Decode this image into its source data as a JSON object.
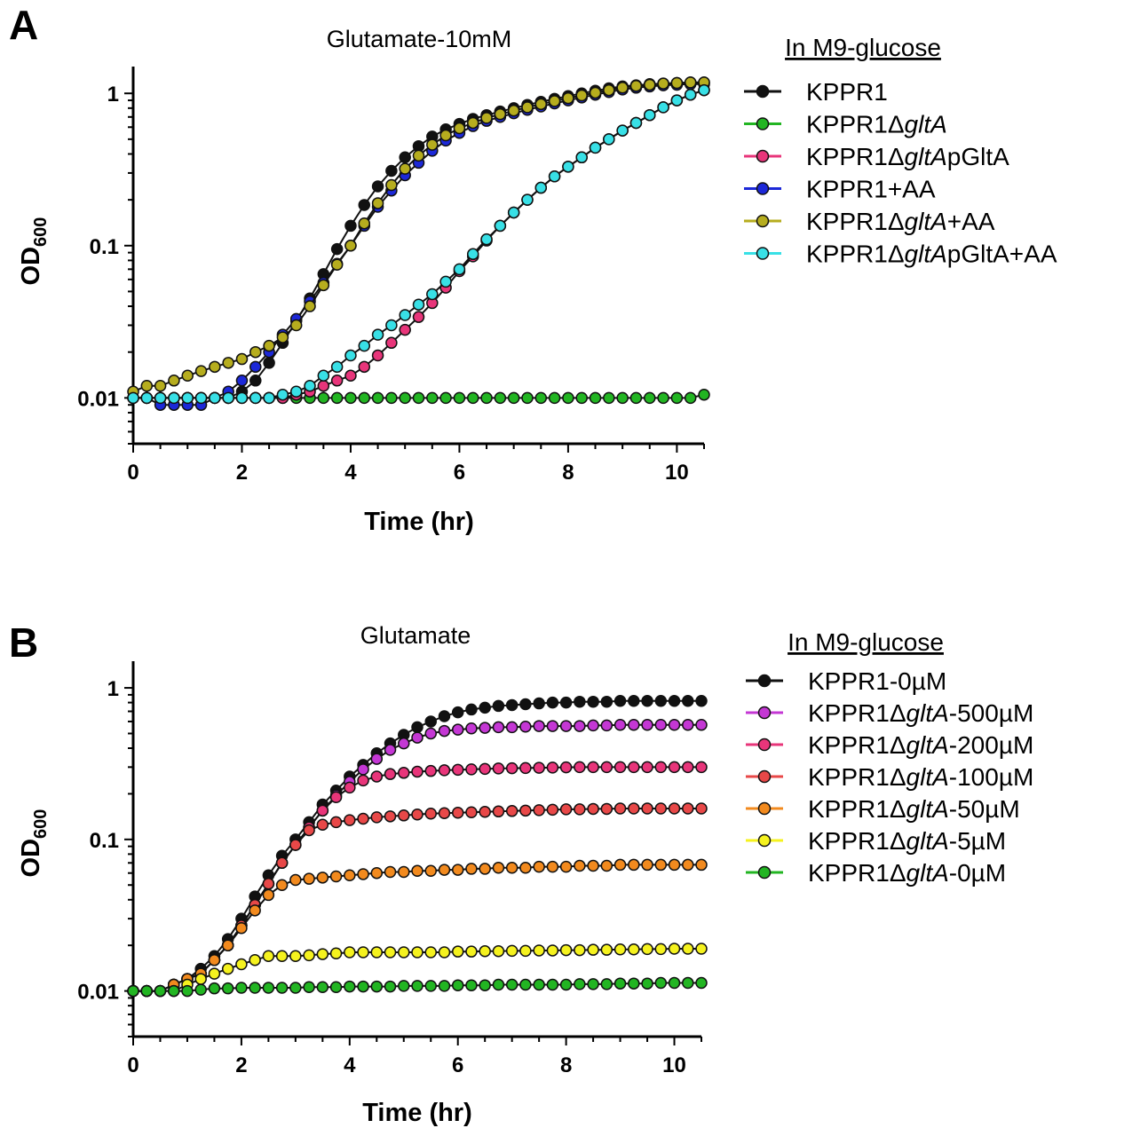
{
  "figure": {
    "panels": [
      {
        "letter": "A",
        "legend_title": "In M9-glucose",
        "legend_entries": [
          {
            "prefix": "KPPR1",
            "italic": "",
            "suffix": ""
          },
          {
            "prefix": "KPPR1Δ",
            "italic": "gltA",
            "suffix": ""
          },
          {
            "prefix": "KPPR1Δ",
            "italic": "gltA",
            "suffix": "pGltA"
          },
          {
            "prefix": "KPPR1+AA",
            "italic": "",
            "suffix": ""
          },
          {
            "prefix": "KPPR1Δ",
            "italic": "gltA",
            "suffix": "+AA"
          },
          {
            "prefix": "KPPR1Δ",
            "italic": "gltA",
            "suffix": "pGltA+AA"
          }
        ]
      },
      {
        "letter": "B",
        "legend_title": "In M9-glucose",
        "legend_entries": [
          {
            "prefix": "KPPR1-0µM",
            "italic": "",
            "suffix": ""
          },
          {
            "prefix": "KPPR1Δ",
            "italic": "gltA",
            "suffix": "-500µM"
          },
          {
            "prefix": "KPPR1Δ",
            "italic": "gltA",
            "suffix": "-200µM"
          },
          {
            "prefix": "KPPR1Δ",
            "italic": "gltA",
            "suffix": "-100µM"
          },
          {
            "prefix": "KPPR1Δ",
            "italic": "gltA",
            "suffix": "-50µM"
          },
          {
            "prefix": "KPPR1Δ",
            "italic": "gltA",
            "suffix": "-5µM"
          },
          {
            "prefix": "KPPR1Δ",
            "italic": "gltA",
            "suffix": "-0µM"
          }
        ]
      }
    ]
  },
  "chart_data": [
    {
      "type": "line",
      "title": "Glutamate-10mM",
      "xlabel": "Time (hr)",
      "ylabel_main": "OD",
      "ylabel_sub": "600",
      "xlim": [
        0,
        10.5
      ],
      "ylim": [
        0.005,
        1.5
      ],
      "yscale": "log",
      "xticks": [
        0,
        2,
        4,
        6,
        8,
        10
      ],
      "yticks": [
        0.01,
        0.1,
        1
      ],
      "ytick_labels": [
        "0.01",
        "0.1",
        "1"
      ],
      "grid": false,
      "legend_position": "right",
      "x": [
        0,
        0.25,
        0.5,
        0.75,
        1,
        1.25,
        1.5,
        1.75,
        2,
        2.25,
        2.5,
        2.75,
        3,
        3.25,
        3.5,
        3.75,
        4,
        4.25,
        4.5,
        4.75,
        5,
        5.25,
        5.5,
        5.75,
        6,
        6.25,
        6.5,
        6.75,
        7,
        7.25,
        7.5,
        7.75,
        8,
        8.25,
        8.5,
        8.75,
        9,
        9.25,
        9.5,
        9.75,
        10,
        10.25,
        10.5
      ],
      "series": [
        {
          "name": "KPPR1",
          "color": "#111111",
          "values": [
            0.01,
            0.01,
            0.01,
            0.01,
            0.01,
            0.01,
            0.01,
            0.01,
            0.011,
            0.013,
            0.017,
            0.023,
            0.032,
            0.045,
            0.065,
            0.095,
            0.135,
            0.185,
            0.245,
            0.31,
            0.38,
            0.45,
            0.52,
            0.58,
            0.63,
            0.68,
            0.72,
            0.76,
            0.8,
            0.84,
            0.88,
            0.92,
            0.96,
            1.0,
            1.04,
            1.08,
            1.11,
            1.13,
            1.15,
            1.16,
            1.17,
            1.18,
            1.18
          ]
        },
        {
          "name": "KPPR1ΔgltA",
          "color": "#22b522",
          "values": [
            0.01,
            0.01,
            0.01,
            0.01,
            0.01,
            0.01,
            0.01,
            0.01,
            0.01,
            0.01,
            0.01,
            0.01,
            0.01,
            0.01,
            0.01,
            0.01,
            0.01,
            0.01,
            0.01,
            0.01,
            0.01,
            0.01,
            0.01,
            0.01,
            0.01,
            0.01,
            0.01,
            0.01,
            0.01,
            0.01,
            0.01,
            0.01,
            0.01,
            0.01,
            0.01,
            0.01,
            0.01,
            0.01,
            0.01,
            0.01,
            0.01,
            0.01,
            0.0105
          ]
        },
        {
          "name": "KPPR1ΔgltApGltA",
          "color": "#e8357a",
          "values": [
            0.01,
            0.01,
            0.01,
            0.01,
            0.01,
            0.01,
            0.01,
            0.01,
            0.01,
            0.01,
            0.01,
            0.01,
            0.0105,
            0.011,
            0.012,
            0.013,
            0.014,
            0.016,
            0.019,
            0.023,
            0.028,
            0.034,
            0.042,
            0.053,
            0.068,
            0.085,
            0.108,
            0.135,
            0.165,
            0.2,
            0.24,
            0.285,
            0.33,
            0.38,
            0.44,
            0.5,
            0.57,
            0.64,
            0.72,
            0.81,
            0.9,
            0.98,
            1.05
          ]
        },
        {
          "name": "KPPR1+AA",
          "color": "#1c28d8",
          "values": [
            0.01,
            0.01,
            0.009,
            0.009,
            0.009,
            0.009,
            0.01,
            0.011,
            0.013,
            0.016,
            0.02,
            0.026,
            0.033,
            0.043,
            0.057,
            0.076,
            0.1,
            0.135,
            0.18,
            0.23,
            0.29,
            0.35,
            0.42,
            0.49,
            0.55,
            0.61,
            0.66,
            0.7,
            0.74,
            0.78,
            0.82,
            0.86,
            0.9,
            0.94,
            0.98,
            1.02,
            1.06,
            1.09,
            1.11,
            1.13,
            1.14,
            1.15,
            1.15
          ]
        },
        {
          "name": "KPPR1ΔgltA+AA",
          "color": "#b6ad1e",
          "values": [
            0.011,
            0.012,
            0.012,
            0.013,
            0.014,
            0.015,
            0.016,
            0.017,
            0.018,
            0.02,
            0.022,
            0.025,
            0.03,
            0.04,
            0.055,
            0.075,
            0.1,
            0.14,
            0.19,
            0.25,
            0.32,
            0.39,
            0.46,
            0.53,
            0.59,
            0.64,
            0.69,
            0.73,
            0.77,
            0.81,
            0.85,
            0.89,
            0.93,
            0.97,
            1.01,
            1.05,
            1.09,
            1.12,
            1.14,
            1.16,
            1.17,
            1.18,
            1.18
          ]
        },
        {
          "name": "KPPR1ΔgltApGltA+AA",
          "color": "#38e0e6",
          "values": [
            0.01,
            0.01,
            0.01,
            0.01,
            0.01,
            0.01,
            0.01,
            0.01,
            0.01,
            0.01,
            0.01,
            0.0105,
            0.011,
            0.012,
            0.014,
            0.016,
            0.019,
            0.022,
            0.026,
            0.03,
            0.035,
            0.041,
            0.048,
            0.058,
            0.07,
            0.088,
            0.11,
            0.135,
            0.165,
            0.2,
            0.24,
            0.285,
            0.33,
            0.38,
            0.44,
            0.5,
            0.57,
            0.64,
            0.72,
            0.81,
            0.9,
            0.98,
            1.05
          ]
        }
      ]
    },
    {
      "type": "line",
      "title": "Glutamate",
      "xlabel": "Time (hr)",
      "ylabel_main": "OD",
      "ylabel_sub": "600",
      "xlim": [
        0,
        10.5
      ],
      "ylim": [
        0.005,
        1.5
      ],
      "yscale": "log",
      "xticks": [
        0,
        2,
        4,
        6,
        8,
        10
      ],
      "yticks": [
        0.01,
        0.1,
        1
      ],
      "ytick_labels": [
        "0.01",
        "0.1",
        "1"
      ],
      "grid": false,
      "legend_position": "right",
      "x": [
        0,
        0.25,
        0.5,
        0.75,
        1,
        1.25,
        1.5,
        1.75,
        2,
        2.25,
        2.5,
        2.75,
        3,
        3.25,
        3.5,
        3.75,
        4,
        4.25,
        4.5,
        4.75,
        5,
        5.25,
        5.5,
        5.75,
        6,
        6.25,
        6.5,
        6.75,
        7,
        7.25,
        7.5,
        7.75,
        8,
        8.25,
        8.5,
        8.75,
        9,
        9.25,
        9.5,
        9.75,
        10,
        10.25,
        10.5
      ],
      "series": [
        {
          "name": "KPPR1-0µM",
          "color": "#111111",
          "values": [
            0.01,
            0.01,
            0.01,
            0.011,
            0.012,
            0.014,
            0.017,
            0.022,
            0.03,
            0.042,
            0.058,
            0.078,
            0.1,
            0.13,
            0.17,
            0.21,
            0.26,
            0.31,
            0.37,
            0.43,
            0.49,
            0.55,
            0.6,
            0.65,
            0.69,
            0.72,
            0.74,
            0.76,
            0.77,
            0.78,
            0.79,
            0.8,
            0.8,
            0.81,
            0.81,
            0.81,
            0.82,
            0.82,
            0.82,
            0.82,
            0.82,
            0.82,
            0.82
          ]
        },
        {
          "name": "KPPR1ΔgltA-500µM",
          "color": "#c437d4",
          "values": [
            0.01,
            0.01,
            0.01,
            0.011,
            0.012,
            0.013,
            0.016,
            0.02,
            0.027,
            0.037,
            0.051,
            0.07,
            0.092,
            0.12,
            0.155,
            0.195,
            0.24,
            0.29,
            0.34,
            0.39,
            0.43,
            0.47,
            0.5,
            0.52,
            0.53,
            0.54,
            0.545,
            0.55,
            0.55,
            0.555,
            0.56,
            0.56,
            0.56,
            0.56,
            0.565,
            0.565,
            0.57,
            0.57,
            0.57,
            0.57,
            0.57,
            0.57,
            0.57
          ]
        },
        {
          "name": "KPPR1ΔgltA-200µM",
          "color": "#e8357a",
          "values": [
            0.01,
            0.01,
            0.01,
            0.011,
            0.012,
            0.013,
            0.016,
            0.02,
            0.027,
            0.037,
            0.051,
            0.07,
            0.092,
            0.12,
            0.155,
            0.19,
            0.22,
            0.245,
            0.26,
            0.27,
            0.275,
            0.28,
            0.283,
            0.286,
            0.288,
            0.29,
            0.292,
            0.294,
            0.295,
            0.296,
            0.297,
            0.298,
            0.299,
            0.3,
            0.3,
            0.3,
            0.3,
            0.3,
            0.3,
            0.3,
            0.3,
            0.3,
            0.3
          ]
        },
        {
          "name": "KPPR1ΔgltA-100µM",
          "color": "#e84848",
          "values": [
            0.01,
            0.01,
            0.01,
            0.011,
            0.012,
            0.013,
            0.016,
            0.02,
            0.027,
            0.037,
            0.051,
            0.07,
            0.092,
            0.115,
            0.125,
            0.13,
            0.134,
            0.137,
            0.14,
            0.142,
            0.144,
            0.146,
            0.148,
            0.149,
            0.15,
            0.151,
            0.152,
            0.153,
            0.154,
            0.155,
            0.156,
            0.157,
            0.158,
            0.158,
            0.159,
            0.159,
            0.16,
            0.16,
            0.16,
            0.16,
            0.16,
            0.16,
            0.16
          ]
        },
        {
          "name": "KPPR1ΔgltA-50µM",
          "color": "#f28a1e",
          "values": [
            0.01,
            0.01,
            0.01,
            0.011,
            0.012,
            0.013,
            0.016,
            0.02,
            0.026,
            0.034,
            0.043,
            0.05,
            0.054,
            0.055,
            0.056,
            0.057,
            0.058,
            0.059,
            0.06,
            0.061,
            0.061,
            0.062,
            0.062,
            0.063,
            0.063,
            0.064,
            0.064,
            0.065,
            0.065,
            0.065,
            0.066,
            0.066,
            0.066,
            0.067,
            0.067,
            0.067,
            0.068,
            0.068,
            0.068,
            0.068,
            0.068,
            0.068,
            0.068
          ]
        },
        {
          "name": "KPPR1ΔgltA-5µM",
          "color": "#f5f21e",
          "values": [
            0.01,
            0.01,
            0.01,
            0.01,
            0.011,
            0.012,
            0.013,
            0.014,
            0.015,
            0.016,
            0.017,
            0.017,
            0.017,
            0.0172,
            0.0175,
            0.0177,
            0.018,
            0.018,
            0.018,
            0.018,
            0.018,
            0.018,
            0.018,
            0.018,
            0.0182,
            0.0182,
            0.0183,
            0.0183,
            0.0184,
            0.0184,
            0.0185,
            0.0185,
            0.0186,
            0.0186,
            0.0187,
            0.0187,
            0.0188,
            0.0188,
            0.0189,
            0.0189,
            0.019,
            0.019,
            0.019
          ]
        },
        {
          "name": "KPPR1ΔgltA-0µM",
          "color": "#22b522",
          "values": [
            0.01,
            0.01,
            0.01,
            0.01,
            0.01,
            0.0102,
            0.0104,
            0.0104,
            0.0105,
            0.0105,
            0.0105,
            0.0105,
            0.0105,
            0.0106,
            0.0106,
            0.0106,
            0.0107,
            0.0107,
            0.0107,
            0.0107,
            0.0108,
            0.0108,
            0.0108,
            0.0108,
            0.0109,
            0.0109,
            0.0109,
            0.011,
            0.011,
            0.011,
            0.011,
            0.011,
            0.011,
            0.0111,
            0.0111,
            0.0111,
            0.0112,
            0.0112,
            0.0112,
            0.0113,
            0.0113,
            0.0113,
            0.0113
          ]
        }
      ]
    }
  ]
}
